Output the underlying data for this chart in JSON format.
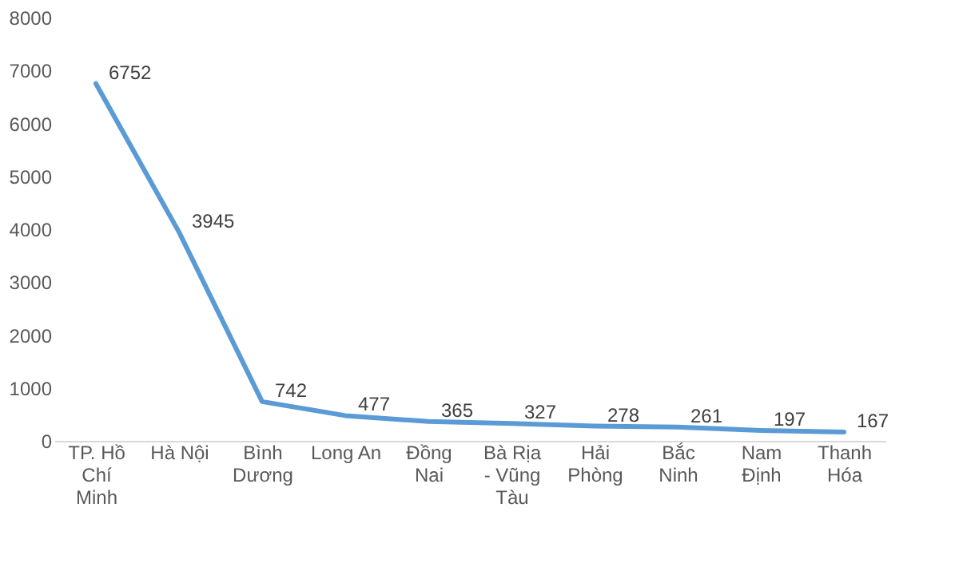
{
  "chart_data": {
    "type": "line",
    "categories": [
      "TP. Hồ Chí Minh",
      "Hà Nội",
      "Bình Dương",
      "Long An",
      "Đồng Nai",
      "Bà Rịa - Vũng Tàu",
      "Hải Phòng",
      "Bắc Ninh",
      "Nam Định",
      "Thanh Hóa"
    ],
    "series": [
      {
        "color": "#5b9bd5",
        "values": [
          6752,
          3945,
          742,
          477,
          365,
          327,
          278,
          261,
          197,
          167
        ]
      }
    ],
    "ylim": [
      0,
      8000
    ],
    "yticks": [
      0,
      1000,
      2000,
      3000,
      4000,
      5000,
      6000,
      7000,
      8000
    ],
    "grid": false,
    "marker": "none",
    "line_style": "solid",
    "data_labels": true
  }
}
